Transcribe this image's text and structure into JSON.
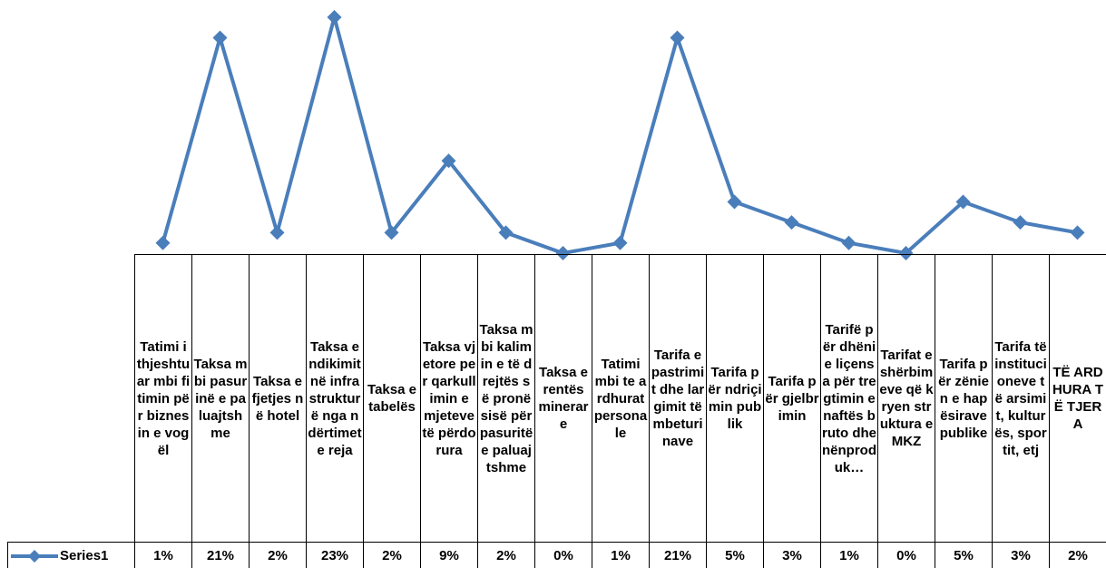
{
  "chart_data": {
    "type": "line",
    "categories": [
      "Tatimi i thjeshtuar mbi fitimin për biznesin e vogël",
      "Taksa mbi pasurinë e paluajtshme",
      "Taksa e fjetjes në hotel",
      "Taksa e ndikimit në infrastrukturë nga ndërtimet e reja",
      "Taksa e tabelës",
      "Taksa vjetore per qarkullimin e mjeteve të përdorura",
      "Taksa mbi kalimin e të drejtës së pronësisë për pasuritë e paluajtshme",
      "Taksa e rentës minerare",
      "Tatimi mbi te ardhurat personale",
      "Tarifa e pastrimit dhe largimit të mbeturinave",
      "Tarifa për ndriçimin publik",
      "Tarifa për gjelbrimin",
      "Tarifë për dhënie liçensa për tregtimin e naftës bruto dhe nënproduk…",
      "Tarifat e shërbimeve që kryen struktura e MKZ",
      "Tarifa për zënien e hapësirave publike",
      "Tarifa të institucioneve të arsimit, kulturës, sportit, etj",
      "TË ARDHURA TË TJERA"
    ],
    "series": [
      {
        "name": "Series1",
        "color": "#4a7ebb",
        "values": [
          1,
          21,
          2,
          23,
          2,
          9,
          2,
          0,
          1,
          21,
          5,
          3,
          1,
          0,
          5,
          3,
          2
        ],
        "value_labels": [
          "1%",
          "21%",
          "2%",
          "23%",
          "2%",
          "9%",
          "2%",
          "0%",
          "1%",
          "21%",
          "5%",
          "3%",
          "1%",
          "0%",
          "5%",
          "3%",
          "2%"
        ]
      }
    ],
    "data_table": true
  }
}
